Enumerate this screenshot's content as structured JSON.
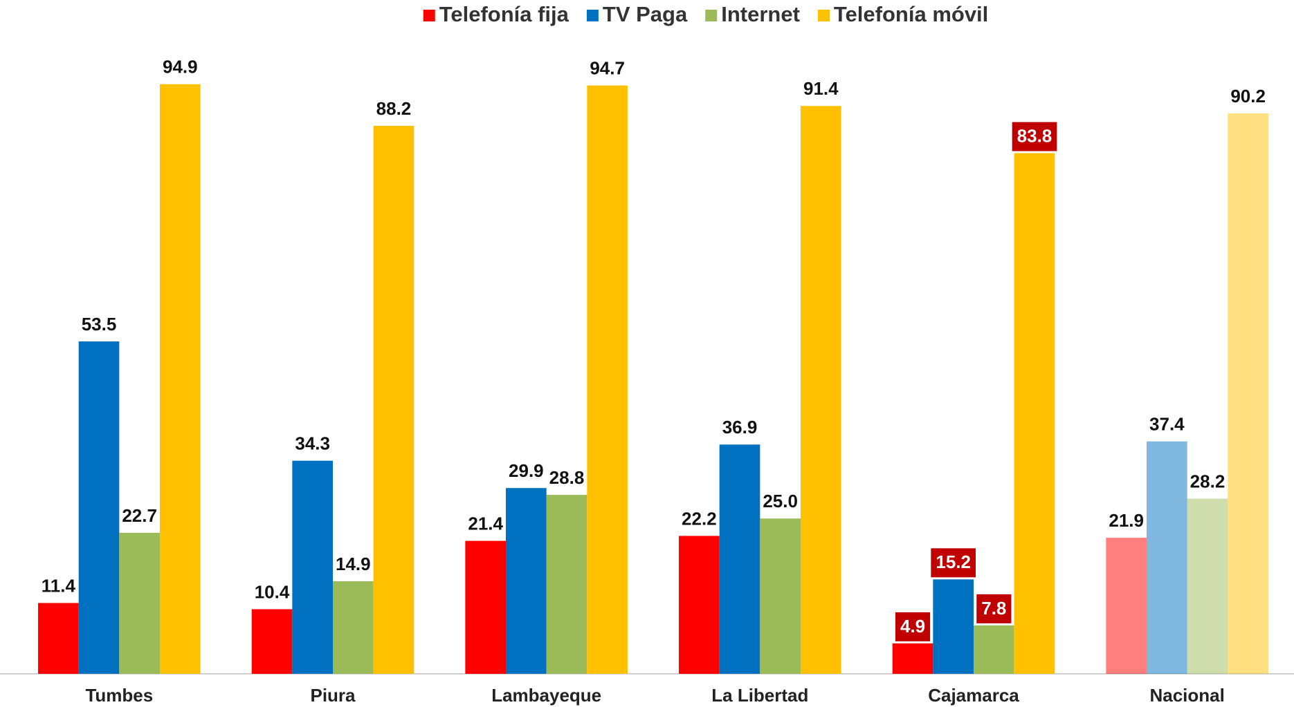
{
  "chart_data": {
    "type": "bar",
    "categories": [
      "Tumbes",
      "Piura",
      "Lambayeque",
      "La Libertad",
      "Cajamarca",
      "Nacional"
    ],
    "series": [
      {
        "name": "Telefonía fija",
        "color": "#ff0000",
        "values": [
          11.4,
          10.4,
          21.4,
          22.2,
          4.9,
          21.9
        ],
        "value_labels": [
          "11.4",
          "10.4",
          "21.4",
          "22.2",
          "4.9",
          "21.9"
        ]
      },
      {
        "name": "TV Paga",
        "color": "#0070c0",
        "values": [
          53.5,
          34.3,
          29.9,
          36.9,
          15.2,
          37.4
        ],
        "value_labels": [
          "53.5",
          "34.3",
          "29.9",
          "36.9",
          "15.2",
          "37.4"
        ]
      },
      {
        "name": "Internet",
        "color": "#9bbb59",
        "values": [
          22.7,
          14.9,
          28.8,
          25.0,
          7.8,
          28.2
        ],
        "value_labels": [
          "22.7",
          "14.9",
          "28.8",
          "25.0",
          "7.8",
          "28.2"
        ]
      },
      {
        "name": "Telefonía móvil",
        "color": "#ffc000",
        "values": [
          94.9,
          88.2,
          94.7,
          91.4,
          83.8,
          90.2
        ],
        "value_labels": [
          "94.9",
          "88.2",
          "94.7",
          "91.4",
          "83.8",
          "90.2"
        ]
      }
    ],
    "ylim": [
      0,
      100
    ],
    "legend": "top",
    "highlight_categories": [
      4
    ],
    "highlight_color": "#c00000",
    "faded_categories": [
      5
    ],
    "faded_opacity": 0.5
  }
}
